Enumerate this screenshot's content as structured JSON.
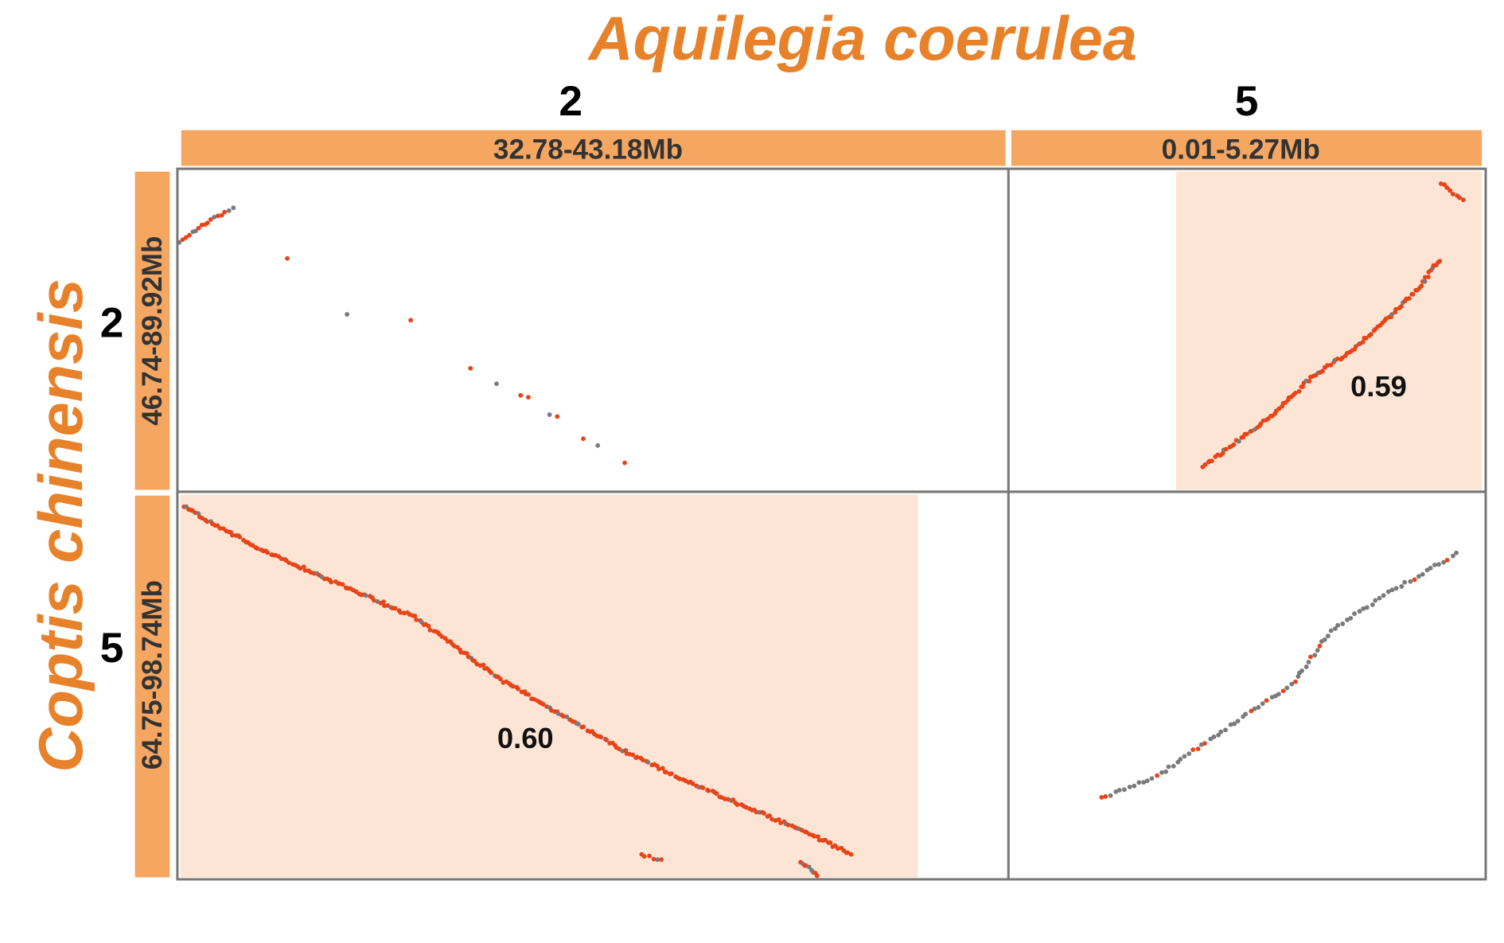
{
  "title_x": "Aquilegia coerulea",
  "title_y": "Coptis chinensis",
  "columns": [
    {
      "chromosome": "2",
      "range": "32.78-43.18Mb"
    },
    {
      "chromosome": "5",
      "range": "0.01-5.27Mb"
    }
  ],
  "rows": [
    {
      "chromosome": "2",
      "range": "46.74-89.92Mb"
    },
    {
      "chromosome": "5",
      "range": "64.75-98.74Mb"
    }
  ],
  "block_labels": [
    "0.59",
    "0.60"
  ]
}
